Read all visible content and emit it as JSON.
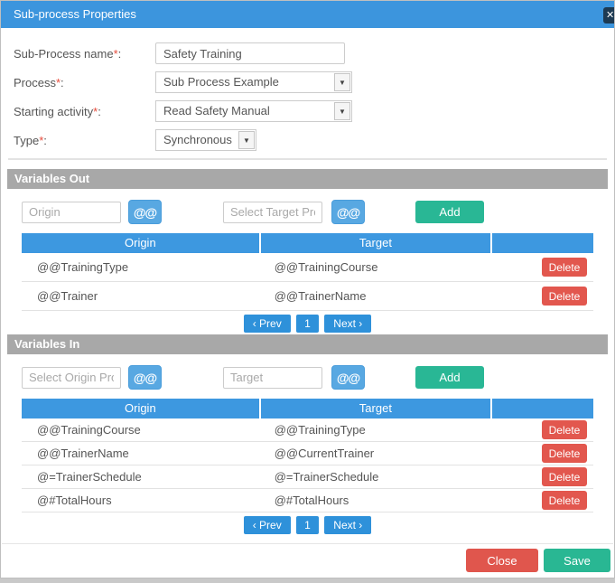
{
  "modal": {
    "title": "Sub-process Properties",
    "close_icon": "✕"
  },
  "form": {
    "required_mark": "*",
    "label_suffix": ":",
    "fields": [
      {
        "label": "Sub-Process name",
        "value": "Safety Training"
      },
      {
        "label": "Process",
        "value": "Sub Process Example"
      },
      {
        "label": "Starting activity",
        "value": "Read Safety Manual"
      },
      {
        "label": "Type",
        "value": "Synchronous"
      }
    ]
  },
  "buttons": {
    "at": "@@",
    "add": "Add",
    "delete": "Delete",
    "close": "Close",
    "save": "Save"
  },
  "pagination": {
    "prev": "‹ Prev",
    "page": "1",
    "next": "Next ›"
  },
  "variables_out": {
    "title": "Variables Out",
    "origin_placeholder": "Origin",
    "target_placeholder": "Select Target Process",
    "columns": [
      "Origin",
      "Target"
    ],
    "rows": [
      {
        "origin": "@@TrainingType",
        "target": "@@TrainingCourse"
      },
      {
        "origin": "@@Trainer",
        "target": "@@TrainerName"
      }
    ]
  },
  "variables_in": {
    "title": "Variables In",
    "origin_placeholder": "Select Origin Process",
    "target_placeholder": "Target",
    "columns": [
      "Origin",
      "Target"
    ],
    "rows": [
      {
        "origin": "@@TrainingCourse",
        "target": "@@TrainingType"
      },
      {
        "origin": "@@TrainerName",
        "target": "@@CurrentTrainer"
      },
      {
        "origin": "@=TrainerSchedule",
        "target": "@=TrainerSchedule"
      },
      {
        "origin": "@#TotalHours",
        "target": "@#TotalHours"
      }
    ]
  },
  "colors": {
    "header_blue": "#3c95dd",
    "table_header_blue": "#3d98e0",
    "pagination_blue": "#2e91da",
    "at_button_blue": "#58a8e2",
    "green": "#29b795",
    "red": "#e0564d",
    "section_gray": "#a8a8a8",
    "close_navy": "#1d3a52"
  }
}
